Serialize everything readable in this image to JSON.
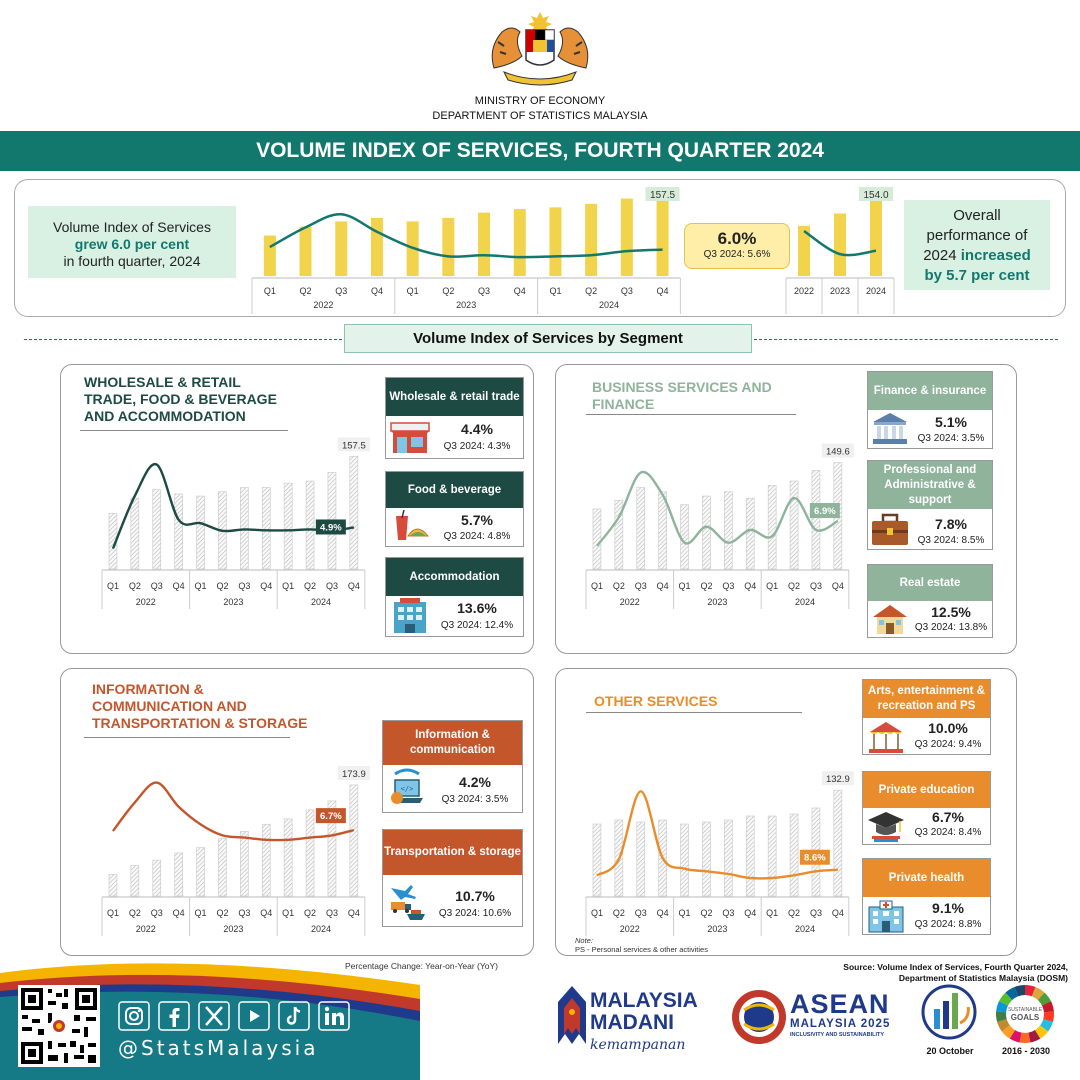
{
  "header": {
    "ministry": "MINISTRY OF ECONOMY",
    "department": "DEPARTMENT OF STATISTICS MALAYSIA"
  },
  "banner": {
    "title": "VOLUME INDEX OF SERVICES, FOURTH QUARTER 2024"
  },
  "overview": {
    "left_line1": "Volume Index of Services",
    "left_line2": "grew 6.0 per cent",
    "left_line3": "in fourth quarter, 2024",
    "callout_value": "6.0%",
    "callout_prev": "Q3 2024: 5.6%",
    "right_line1": "Overall",
    "right_line2": "performance of",
    "right_line3a": "2024 ",
    "right_line3b": "increased",
    "right_line4": "by 5.7 per cent"
  },
  "segment_title": "Volume Index of Services by Segment",
  "panels": {
    "wrt": {
      "title": "WHOLESALE & RETAIL TRADE, FOOD & BEVERAGE AND ACCOMMODATION",
      "subs": [
        {
          "name": "Wholesale & retail trade",
          "value": "4.4%",
          "prev": "Q3 2024: 4.3%"
        },
        {
          "name": "Food & beverage",
          "value": "5.7%",
          "prev": "Q3 2024: 4.8%"
        },
        {
          "name": "Accommodation",
          "value": "13.6%",
          "prev": "Q3 2024: 12.4%"
        }
      ]
    },
    "bsf": {
      "title": "BUSINESS SERVICES AND FINANCE",
      "subs": [
        {
          "name": "Finance & insurance",
          "value": "5.1%",
          "prev": "Q3 2024: 3.5%"
        },
        {
          "name": "Professional and Administrative & support",
          "value": "7.8%",
          "prev": "Q3 2024: 8.5%"
        },
        {
          "name": "Real estate",
          "value": "12.5%",
          "prev": "Q3 2024: 13.8%"
        }
      ]
    },
    "ict": {
      "title": "INFORMATION & COMMUNICATION AND TRANSPORTATION & STORAGE",
      "subs": [
        {
          "name": "Information & communication",
          "value": "4.2%",
          "prev": "Q3 2024: 3.5%"
        },
        {
          "name": "Transportation & storage",
          "value": "10.7%",
          "prev": "Q3 2024: 10.6%"
        }
      ]
    },
    "oth": {
      "title": "OTHER SERVICES",
      "subs": [
        {
          "name": "Arts, entertainment & recreation and PS",
          "value": "10.0%",
          "prev": "Q3 2024: 9.4%"
        },
        {
          "name": "Private education",
          "value": "6.7%",
          "prev": "Q3 2024: 8.4%"
        },
        {
          "name": "Private health",
          "value": "9.1%",
          "prev": "Q3 2024: 8.8%"
        }
      ],
      "note_title": "Note:",
      "note_text": "PS - Personal services & other activities"
    }
  },
  "footer": {
    "pct_note": "Percentage Change: Year-on-Year (YoY)",
    "source_line1": "Source: Volume Index of Services, Fourth Quarter 2024,",
    "source_line2": "Department of Statistics Malaysia (DOSM)",
    "handle": "@StatsMalaysia",
    "madani1": "MALAYSIA",
    "madani2": "MADANI",
    "madani3": "kemampanan",
    "asean1": "ASEAN",
    "asean2": "MALAYSIA 2025",
    "asean3": "INCLUSIVITY AND SUSTAINABILITY",
    "stats_day": "20 October",
    "sdg_years": "2016 - 2030"
  },
  "colors": {
    "teal": "#12786e",
    "yellow": "#f1d34c",
    "dark_green": "#1d4a43",
    "sage": "#8fb39b",
    "orange_brown": "#c4562c",
    "orange": "#e98d2c"
  },
  "chart_data": [
    {
      "id": "overall_quarterly",
      "type": "bar",
      "quarter_labels": [
        "Q1",
        "Q2",
        "Q3",
        "Q4",
        "Q1",
        "Q2",
        "Q3",
        "Q4",
        "Q1",
        "Q2",
        "Q3",
        "Q4"
      ],
      "year_labels": [
        "2022",
        "2023",
        "2024"
      ],
      "index_values": [
        133,
        138,
        141,
        143,
        141,
        143,
        146,
        148,
        149,
        151,
        154,
        157.5
      ],
      "yoy_values": [
        6.7,
        12.0,
        15.5,
        10.8,
        6.5,
        4.2,
        4.5,
        4.0,
        4.2,
        4.5,
        5.6,
        6.0
      ],
      "value_labels": [
        {
          "index": 11,
          "text": "157.5"
        }
      ]
    },
    {
      "id": "overall_annual",
      "type": "bar",
      "categories": [
        "2022",
        "2023",
        "2024"
      ],
      "index_values": [
        138.5,
        145.5,
        154.0
      ],
      "yoy_values": [
        11.0,
        4.8,
        5.7
      ],
      "value_labels": [
        {
          "index": 2,
          "text": "154.0"
        }
      ]
    },
    {
      "id": "wrt",
      "type": "bar",
      "quarter_labels": [
        "Q1",
        "Q2",
        "Q3",
        "Q4",
        "Q1",
        "Q2",
        "Q3",
        "Q4",
        "Q1",
        "Q2",
        "Q3",
        "Q4"
      ],
      "year_labels": [
        "2022",
        "2023",
        "2024"
      ],
      "index_values": [
        131,
        138,
        142,
        140,
        139,
        141,
        143,
        143,
        145,
        146,
        150,
        157.5
      ],
      "yoy_values": [
        0.5,
        11.5,
        18.0,
        6.5,
        5.8,
        4.2,
        4.5,
        4.3,
        4.3,
        4.5,
        4.3,
        4.9
      ],
      "value_labels": [
        {
          "index": 11,
          "text": "157.5"
        }
      ],
      "line_label": "4.9%"
    },
    {
      "id": "bsf",
      "type": "bar",
      "quarter_labels": [
        "Q1",
        "Q2",
        "Q3",
        "Q4",
        "Q1",
        "Q2",
        "Q3",
        "Q4",
        "Q1",
        "Q2",
        "Q3",
        "Q4"
      ],
      "year_labels": [
        "2022",
        "2023",
        "2024"
      ],
      "index_values": [
        128,
        132,
        138,
        136,
        130,
        134,
        136,
        133,
        139,
        141,
        146,
        149.6
      ],
      "yoy_values": [
        3.0,
        7.5,
        14.5,
        11.0,
        3.5,
        6.0,
        3.5,
        5.5,
        4.5,
        10.5,
        5.5,
        6.9
      ],
      "value_labels": [
        {
          "index": 11,
          "text": "149.6"
        }
      ],
      "line_label": "6.9%"
    },
    {
      "id": "ict",
      "type": "bar",
      "quarter_labels": [
        "Q1",
        "Q2",
        "Q3",
        "Q4",
        "Q1",
        "Q2",
        "Q3",
        "Q4",
        "Q1",
        "Q2",
        "Q3",
        "Q4"
      ],
      "year_labels": [
        "2022",
        "2023",
        "2024"
      ],
      "index_values": [
        124,
        129,
        132,
        136,
        139,
        144,
        148,
        152,
        155,
        160,
        165,
        173.9
      ],
      "yoy_values": [
        6.5,
        13.0,
        17.5,
        12.0,
        8.0,
        5.5,
        5.0,
        4.5,
        4.5,
        5.0,
        5.5,
        6.7
      ],
      "value_labels": [
        {
          "index": 11,
          "text": "173.9"
        }
      ],
      "line_label": "6.7%"
    },
    {
      "id": "oth",
      "type": "bar",
      "quarter_labels": [
        "Q1",
        "Q2",
        "Q3",
        "Q4",
        "Q1",
        "Q2",
        "Q3",
        "Q4",
        "Q1",
        "Q2",
        "Q3",
        "Q4"
      ],
      "year_labels": [
        "2022",
        "2023",
        "2024"
      ],
      "index_values": [
        116,
        118,
        117,
        118,
        116,
        117,
        118,
        120,
        120,
        121,
        124,
        132.9
      ],
      "yoy_values": [
        6.5,
        12.5,
        38.0,
        13.0,
        9.0,
        8.0,
        7.0,
        5.5,
        5.5,
        6.5,
        8.0,
        8.6
      ],
      "value_labels": [
        {
          "index": 11,
          "text": "132.9"
        }
      ],
      "line_label": "8.6%"
    }
  ]
}
